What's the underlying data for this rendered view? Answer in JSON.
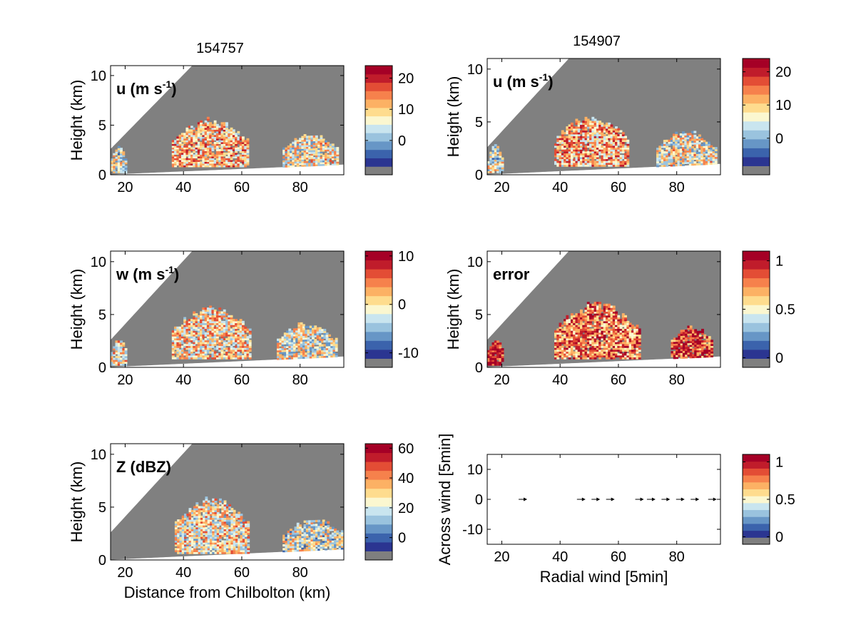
{
  "titles": [
    "154757",
    "154907"
  ],
  "colormap": [
    "#7f7f7f",
    "#2b3591",
    "#3b63ac",
    "#6796c6",
    "#9ac3de",
    "#c9e5ef",
    "#fbf7d0",
    "#fedc8e",
    "#fcb164",
    "#f6814c",
    "#e34d35",
    "#c01c2b",
    "#a50026"
  ],
  "chart_data": [
    {
      "id": "u-left",
      "type": "heatmap",
      "title": "154757",
      "panel_label": "u (m s",
      "panel_label_sup": "-1",
      "panel_label_close": ")",
      "xlabel": "",
      "ylabel": "Height (km)",
      "xlim": [
        15,
        95
      ],
      "ylim": [
        0,
        11
      ],
      "xticks": [
        "20",
        "40",
        "60",
        "80"
      ],
      "yticks": [
        "0",
        "5",
        "10"
      ],
      "colorbar": {
        "ticks": [
          "20",
          "10",
          "0"
        ],
        "tick_values": [
          20,
          10,
          0
        ],
        "range": [
          -11,
          24
        ]
      },
      "echo_regions": [
        {
          "x": [
            36,
            62
          ],
          "y": [
            0.8,
            5.7
          ],
          "mean": 10
        },
        {
          "x": [
            15,
            20
          ],
          "y": [
            0.2,
            2.8
          ],
          "mean": 4
        },
        {
          "x": [
            74,
            93
          ],
          "y": [
            0.7,
            4.2
          ],
          "mean": 6
        }
      ]
    },
    {
      "id": "u-right",
      "type": "heatmap",
      "title": "154907",
      "panel_label": "u (m s",
      "panel_label_sup": "-1",
      "panel_label_close": ")",
      "xlabel": "",
      "ylabel": "Height (km)",
      "xlim": [
        15,
        95
      ],
      "ylim": [
        0,
        11
      ],
      "xticks": [
        "20",
        "40",
        "60",
        "80"
      ],
      "yticks": [
        "0",
        "5",
        "10"
      ],
      "colorbar": {
        "ticks": [
          "20",
          "10",
          "0"
        ],
        "tick_values": [
          20,
          10,
          0
        ],
        "range": [
          -11,
          24
        ]
      },
      "echo_regions": [
        {
          "x": [
            38,
            63
          ],
          "y": [
            0.8,
            5.7
          ],
          "mean": 10
        },
        {
          "x": [
            15,
            20
          ],
          "y": [
            0.2,
            2.8
          ],
          "mean": 4
        },
        {
          "x": [
            73,
            93
          ],
          "y": [
            0.7,
            4.2
          ],
          "mean": 6
        }
      ]
    },
    {
      "id": "w-left",
      "type": "heatmap",
      "title": "",
      "panel_label": "w (m s",
      "panel_label_sup": "-1",
      "panel_label_close": ")",
      "xlabel": "",
      "ylabel": "Height (km)",
      "xlim": [
        15,
        95
      ],
      "ylim": [
        0,
        11
      ],
      "xticks": [
        "20",
        "40",
        "60",
        "80"
      ],
      "yticks": [
        "0",
        "5",
        "10"
      ],
      "colorbar": {
        "ticks": [
          "10",
          "0",
          "-10"
        ],
        "tick_values": [
          10,
          0,
          -10
        ],
        "range": [
          -13,
          11
        ]
      },
      "echo_regions": [
        {
          "x": [
            36,
            63
          ],
          "y": [
            0.8,
            5.9
          ],
          "mean": 0
        },
        {
          "x": [
            15,
            20
          ],
          "y": [
            0.2,
            2.8
          ],
          "mean": 0
        },
        {
          "x": [
            72,
            92
          ],
          "y": [
            0.7,
            4.3
          ],
          "mean": -2
        }
      ]
    },
    {
      "id": "error-right",
      "type": "heatmap",
      "title": "",
      "panel_label": "error",
      "panel_label_sup": "",
      "panel_label_close": "",
      "xlabel": "",
      "ylabel": "Height (km)",
      "xlim": [
        15,
        95
      ],
      "ylim": [
        0,
        11
      ],
      "xticks": [
        "20",
        "40",
        "60",
        "80"
      ],
      "yticks": [
        "0",
        "5",
        "10"
      ],
      "colorbar": {
        "ticks": [
          "1",
          "0.5",
          "0"
        ],
        "tick_values": [
          1,
          0.5,
          0
        ],
        "range": [
          -0.1,
          1.1
        ]
      },
      "echo_regions": [
        {
          "x": [
            38,
            67
          ],
          "y": [
            0.8,
            6.2
          ],
          "mean": 0.75
        },
        {
          "x": [
            15,
            20
          ],
          "y": [
            0.2,
            2.8
          ],
          "mean": 1
        },
        {
          "x": [
            78,
            92
          ],
          "y": [
            0.7,
            4.0
          ],
          "mean": 0.9
        }
      ]
    },
    {
      "id": "z-left",
      "type": "heatmap",
      "title": "",
      "panel_label": "Z (dBZ)",
      "panel_label_sup": "",
      "panel_label_close": "",
      "xlabel": "Distance from Chilbolton (km)",
      "ylabel": "Height (km)",
      "xlim": [
        15,
        95
      ],
      "ylim": [
        0,
        11
      ],
      "xticks": [
        "20",
        "40",
        "60",
        "80"
      ],
      "yticks": [
        "0",
        "5",
        "10"
      ],
      "colorbar": {
        "ticks": [
          "60",
          "40",
          "20",
          "0"
        ],
        "tick_values": [
          60,
          40,
          20,
          0
        ],
        "range": [
          -15,
          63
        ]
      },
      "echo_regions": [
        {
          "x": [
            37,
            62
          ],
          "y": [
            0.6,
            6.0
          ],
          "mean": 25
        },
        {
          "x": [
            74,
            95
          ],
          "y": [
            0.6,
            4.0
          ],
          "mean": 18
        }
      ]
    },
    {
      "id": "wind-right",
      "type": "scatter",
      "title": "",
      "panel_label": "",
      "panel_label_sup": "",
      "panel_label_close": "",
      "xlabel": "Radial wind [5min]",
      "ylabel": "Across wind [5min]",
      "xlim": [
        15,
        95
      ],
      "ylim": [
        -15,
        15
      ],
      "xticks": [
        "20",
        "40",
        "60",
        "80"
      ],
      "yticks": [
        "10",
        "0",
        "-10"
      ],
      "colorbar": {
        "ticks": [
          "1",
          "0.5",
          "0"
        ],
        "tick_values": [
          1,
          0.5,
          0
        ],
        "range": [
          -0.1,
          1.1
        ]
      },
      "arrows": [
        {
          "x": 27,
          "y": 0
        },
        {
          "x": 47,
          "y": 0
        },
        {
          "x": 52,
          "y": 0
        },
        {
          "x": 57,
          "y": 0
        },
        {
          "x": 67,
          "y": 0
        },
        {
          "x": 71,
          "y": 0
        },
        {
          "x": 76,
          "y": 0
        },
        {
          "x": 81,
          "y": 0
        },
        {
          "x": 86,
          "y": 0
        },
        {
          "x": 92,
          "y": 0
        }
      ]
    }
  ]
}
